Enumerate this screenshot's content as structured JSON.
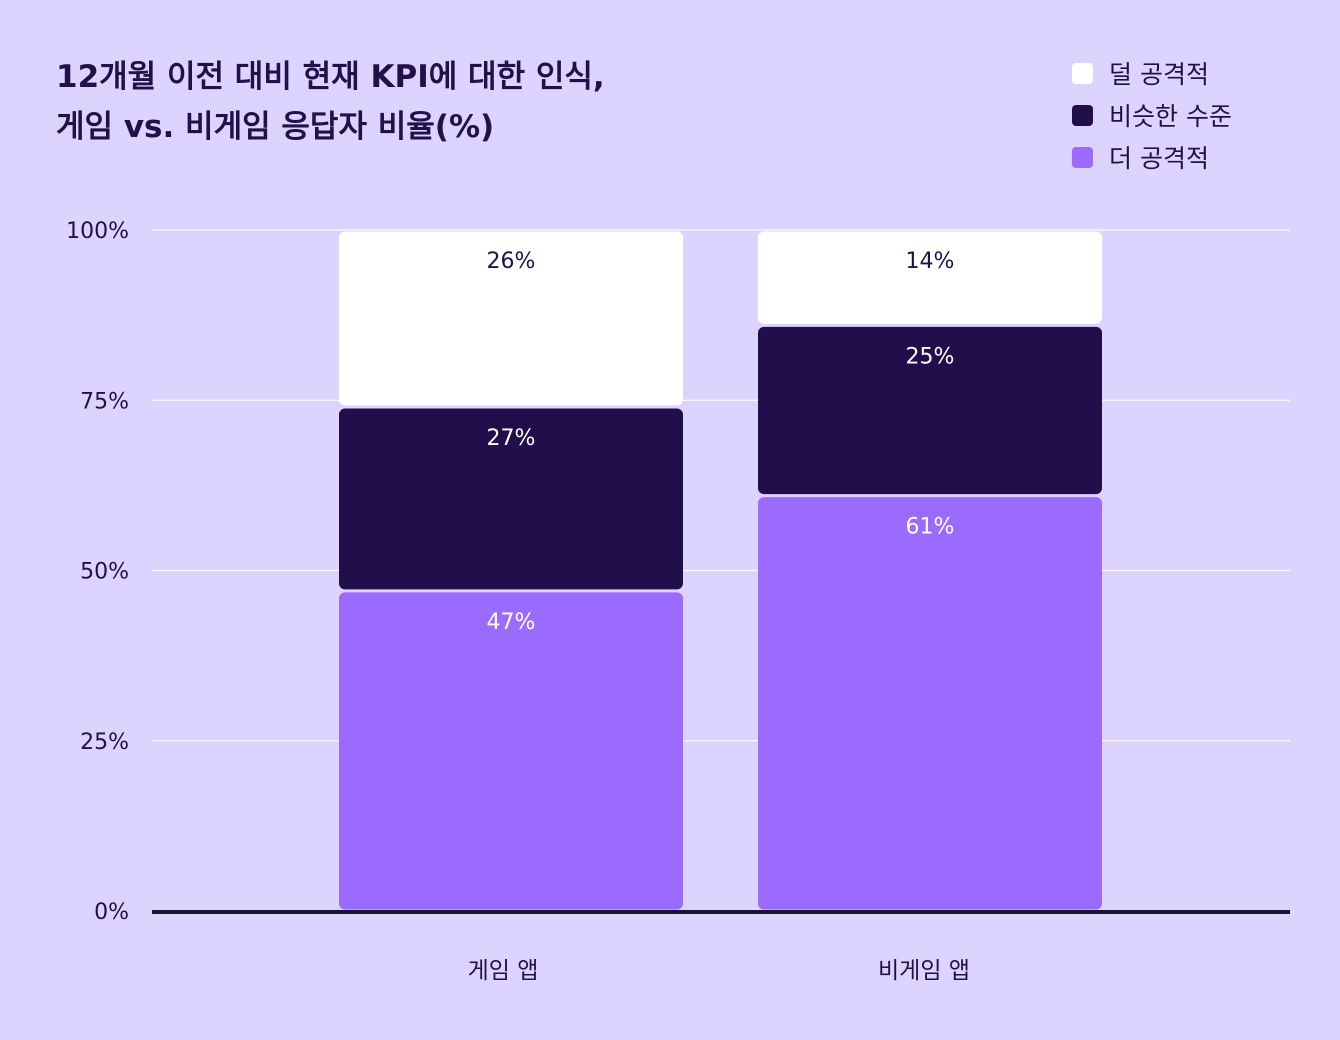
{
  "title_line1": "12개월 이전 대비 현재 KPI에 대한 인식,",
  "title_line2": "게임 vs. 비게임 응답자 비율(%)",
  "legend": [
    {
      "label": "덜 공격적",
      "color": "#ffffff"
    },
    {
      "label": "비슷한 수준",
      "color": "#210e4b"
    },
    {
      "label": "더 공격적",
      "color": "#9b6bff"
    }
  ],
  "chart_data": {
    "type": "bar",
    "stacked": true,
    "categories": [
      "게임 앱",
      "비게임 앱"
    ],
    "series": [
      {
        "name": "더 공격적",
        "values": [
          47,
          61
        ],
        "color": "#9b6bff",
        "label_color": "#ffffff"
      },
      {
        "name": "비슷한 수준",
        "values": [
          27,
          25
        ],
        "color": "#210e4b",
        "label_color": "#ffffff"
      },
      {
        "name": "덜 공격적",
        "values": [
          26,
          14
        ],
        "color": "#ffffff",
        "label_color": "#21104a"
      }
    ],
    "value_suffix": "%",
    "yticks": [
      "0%",
      "25%",
      "50%",
      "75%",
      "100%"
    ],
    "ylim": [
      0,
      100
    ],
    "grid": true,
    "legend_position": "top-right"
  }
}
